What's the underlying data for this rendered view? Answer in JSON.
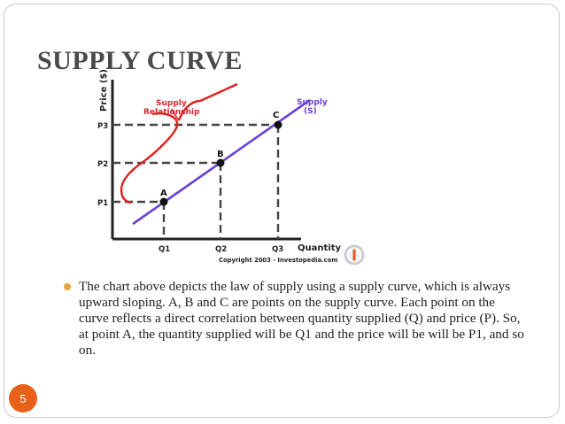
{
  "slide": {
    "title": "SUPPLY CURVE",
    "bullet": "The chart above depicts the law of supply using a supply curve, which is always upward sloping. A, B and C are points on the supply curve. Each point on the curve reflects a direct correlation between quantity supplied (Q) and price (P). So, at point A, the quantity supplied will be Q1 and the price will be will be P1, and so on.",
    "page_number": "5"
  },
  "diagram": {
    "y_axis_label": "Price ($)",
    "x_axis_label": "Quantity",
    "price_ticks": [
      "P3",
      "P2",
      "P1"
    ],
    "quantity_ticks": [
      "Q1",
      "Q2",
      "Q3"
    ],
    "points": [
      "A",
      "B",
      "C"
    ],
    "supply_label_line1": "Supply",
    "supply_label_line2": "(S)",
    "relationship_label_line1": "Supply",
    "relationship_label_line2": "Relationship",
    "copyright": "Copyright 2003 - Investopedia.com",
    "colors": {
      "supply_line": "#6a3fd4",
      "relationship_curve": "#e02020",
      "label_red": "#d8262b",
      "axis": "#222222",
      "guide": "#444444"
    }
  }
}
